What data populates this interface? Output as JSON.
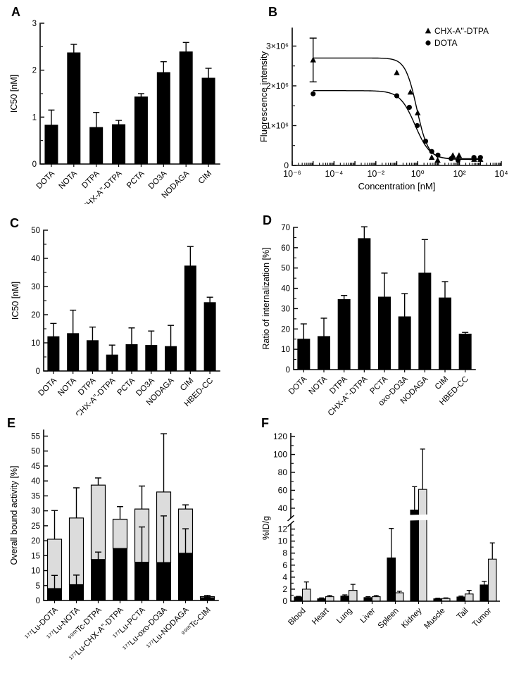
{
  "figure": {
    "background": "#ffffff",
    "axis_color": "#000000",
    "bar_color": "#000000",
    "gray_color": "#dcdcdc"
  },
  "chart_data": [
    {
      "panel": "A",
      "type": "bar",
      "ylabel": "IC50 [nM]",
      "ylim": [
        0,
        3
      ],
      "yticks": [
        0,
        1,
        2,
        3
      ],
      "minor_step": 0.5,
      "grid": false,
      "categories": [
        "DOTA",
        "NOTA",
        "DTPA",
        "CHX-A''-DTPA",
        "PCTA",
        "DO3A",
        "NODAGA",
        "CIM"
      ],
      "values": [
        0.83,
        2.37,
        0.78,
        0.84,
        1.43,
        1.95,
        2.39,
        1.83
      ],
      "errors": [
        0.32,
        0.18,
        0.32,
        0.09,
        0.07,
        0.23,
        0.2,
        0.21
      ]
    },
    {
      "panel": "B",
      "type": "scatter",
      "xlabel": "Concentration [nM]",
      "ylabel": "Fluorescence intensity",
      "xscale": "log",
      "xlim_exp": [
        -6,
        4
      ],
      "xtick_exps": [
        -6,
        -4,
        -2,
        0,
        2,
        4
      ],
      "xtick_labels": [
        "10⁻⁶",
        "10⁻⁴",
        "10⁻²",
        "10⁰",
        "10²",
        "10⁴"
      ],
      "ylim": [
        0,
        3450000
      ],
      "yticks": [
        0,
        1000000,
        2000000,
        3000000
      ],
      "ytick_labels": [
        "0",
        "1×10⁶",
        "2×10⁶",
        "3×10⁶"
      ],
      "yminor_step": 500000,
      "legend_position": "top-right",
      "series": [
        {
          "name": "CHX-A''-DTPA",
          "marker": "triangle",
          "x": [
            1e-05,
            0.1,
            0.45,
            1.0,
            4.7,
            9.0,
            48,
            95,
            500,
            1000
          ],
          "y": [
            2650000,
            2330000,
            1840000,
            1320000,
            200000,
            130000,
            250000,
            250000,
            150000,
            150000
          ],
          "first_point_error": 550000,
          "fit": {
            "top": 2700000,
            "bottom": 170000,
            "ic50": 0.9,
            "hill": 1.6
          }
        },
        {
          "name": "DOTA",
          "marker": "circle",
          "x": [
            1e-05,
            0.1,
            0.4,
            0.95,
            2.4,
            4.7,
            9.3,
            40,
            85,
            490,
            1000
          ],
          "y": [
            1800000,
            1750000,
            1460000,
            1000000,
            610000,
            350000,
            260000,
            170000,
            130000,
            200000,
            200000
          ],
          "fit": {
            "top": 1880000,
            "bottom": 150000,
            "ic50": 0.75,
            "hill": 1.2
          }
        }
      ]
    },
    {
      "panel": "C",
      "type": "bar",
      "ylabel": "IC50 [nM]",
      "ylim": [
        0,
        50
      ],
      "yticks": [
        0,
        10,
        20,
        30,
        40,
        50
      ],
      "minor_step": 5,
      "grid": false,
      "categories": [
        "DOTA",
        "NOTA",
        "DTPA",
        "CHX-A''-DTPA",
        "PCTA",
        "DO3A",
        "NODAGA",
        "CIM",
        "HBED-CC"
      ],
      "values": [
        12.2,
        13.3,
        10.8,
        5.7,
        9.4,
        9.1,
        8.7,
        37.3,
        24.3
      ],
      "errors": [
        4.7,
        8.3,
        4.8,
        3.5,
        5.9,
        5.1,
        7.5,
        6.9,
        1.9
      ]
    },
    {
      "panel": "D",
      "type": "bar",
      "ylabel": "Ratio of internalization [%]",
      "ylim": [
        0,
        70
      ],
      "yticks": [
        0,
        10,
        20,
        30,
        40,
        50,
        60,
        70
      ],
      "minor_step": 5,
      "grid": false,
      "categories": [
        "DOTA",
        "NOTA",
        "DTPA",
        "CHX-A''-DTPA",
        "PCTA",
        "oxo-DO3A",
        "NODAGA",
        "CIM",
        "HBED-CC"
      ],
      "values": [
        15.0,
        16.3,
        34.5,
        64.5,
        35.7,
        26.0,
        47.5,
        35.3,
        17.5
      ],
      "errors": [
        7.5,
        9.0,
        2.0,
        5.8,
        11.8,
        11.4,
        16.5,
        8.0,
        0.8
      ]
    },
    {
      "panel": "E",
      "type": "stacked-bar",
      "ylabel": "Overall bound activity [%]",
      "ylim": [
        0,
        57
      ],
      "yticks": [
        0,
        5,
        10,
        15,
        20,
        25,
        30,
        35,
        40,
        45,
        50,
        55
      ],
      "minor_step": 0,
      "grid": false,
      "categories": [
        "¹⁷⁷Lu-DOTA",
        "¹⁷⁷Lu-NOTA",
        "⁹⁹ᵐTc-DTPA",
        "¹⁷⁷Lu-CHX-A''-DTPA",
        "¹⁷⁷Lu-PCTA",
        "¹⁷⁷Lu-oxo-DO3A",
        "¹⁷⁷Lu-NODAGA",
        "⁹⁹ᵐTc-CIM"
      ],
      "series": [
        {
          "name": "black-segment",
          "color": "#000000",
          "values": [
            4.0,
            5.3,
            13.7,
            17.4,
            12.8,
            12.7,
            15.8,
            0.9
          ],
          "errors": [
            4.4,
            3.2,
            2.5,
            10.0,
            11.8,
            15.6,
            8.2,
            0.3
          ],
          "error_direction": [
            "up",
            "up",
            "up",
            "down",
            "up",
            "up",
            "up",
            "up"
          ]
        },
        {
          "name": "gray-segment",
          "color": "#dcdcdc",
          "totals": [
            20.5,
            27.6,
            38.6,
            27.2,
            30.6,
            36.3,
            30.6,
            1.3
          ],
          "errors": [
            9.6,
            10.1,
            2.4,
            4.2,
            7.7,
            19.5,
            1.4,
            0.4
          ]
        }
      ]
    },
    {
      "panel": "F",
      "type": "grouped-bar-broken-axis",
      "ylabel": "%ID/g",
      "lower_ylim": [
        0,
        13
      ],
      "lower_yticks": [
        0,
        2,
        4,
        6,
        8,
        10,
        12
      ],
      "lower_minor": [
        1,
        3,
        5,
        7,
        9,
        11
      ],
      "upper_ylim": [
        36,
        124
      ],
      "upper_yticks": [
        40,
        60,
        80,
        100,
        120
      ],
      "upper_minor": [
        50,
        70,
        90,
        110
      ],
      "grid": false,
      "categories": [
        "Blood",
        "Heart",
        "Lung",
        "Liver",
        "Spleen",
        "Kidney",
        "Muscle",
        "Tail",
        "Tumor"
      ],
      "series": [
        {
          "name": "black-bars",
          "color": "#000000",
          "values": [
            0.7,
            0.4,
            0.85,
            0.6,
            7.2,
            38,
            0.4,
            0.7,
            2.7
          ],
          "errors": [
            0.1,
            0.15,
            0.2,
            0.15,
            4.9,
            26,
            0.1,
            0.15,
            0.6
          ]
        },
        {
          "name": "gray-bars",
          "color": "#dcdcdc",
          "values": [
            2.0,
            0.75,
            1.8,
            0.75,
            1.4,
            61,
            0.45,
            1.2,
            7.0
          ],
          "errors": [
            1.2,
            0.2,
            1.0,
            0.2,
            0.25,
            45,
            0.1,
            0.6,
            2.7
          ]
        }
      ]
    }
  ]
}
